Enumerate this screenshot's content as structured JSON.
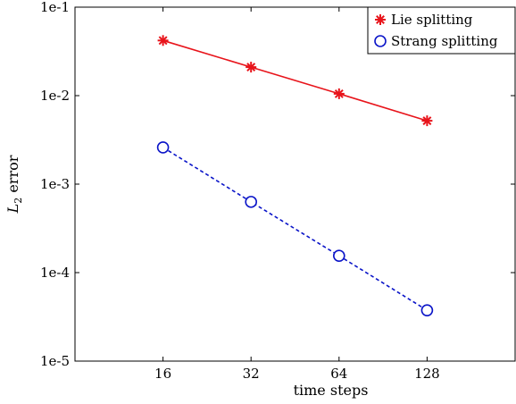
{
  "chart_data": {
    "type": "line",
    "xscale": "log2",
    "yscale": "log10",
    "x": [
      16,
      32,
      64,
      128
    ],
    "xticks": [
      16,
      32,
      64,
      128
    ],
    "xtick_labels": [
      "16",
      "32",
      "64",
      "128"
    ],
    "xlim": [
      8,
      256
    ],
    "yticks": [
      1e-05,
      0.0001,
      0.001,
      0.01,
      0.1
    ],
    "ytick_labels": [
      "1e-5",
      "1e-4",
      "1e-3",
      "1e-2",
      "1e-1"
    ],
    "ylim": [
      1e-05,
      0.1
    ],
    "xlabel": "time steps",
    "ylabel_main": "L",
    "ylabel_sub": "2",
    "ylabel_rest": " error",
    "grid": false,
    "legend_position": "top-right",
    "series": [
      {
        "name": "Lie splitting",
        "values": [
          0.042,
          0.021,
          0.0105,
          0.0052
        ],
        "color": "#e8141b",
        "marker": "asterisk",
        "line": "solid"
      },
      {
        "name": "Strang splitting",
        "values": [
          0.0026,
          0.00063,
          0.000155,
          3.75e-05
        ],
        "color": "#0a14c8",
        "marker": "circle",
        "line": "dashed"
      }
    ]
  }
}
